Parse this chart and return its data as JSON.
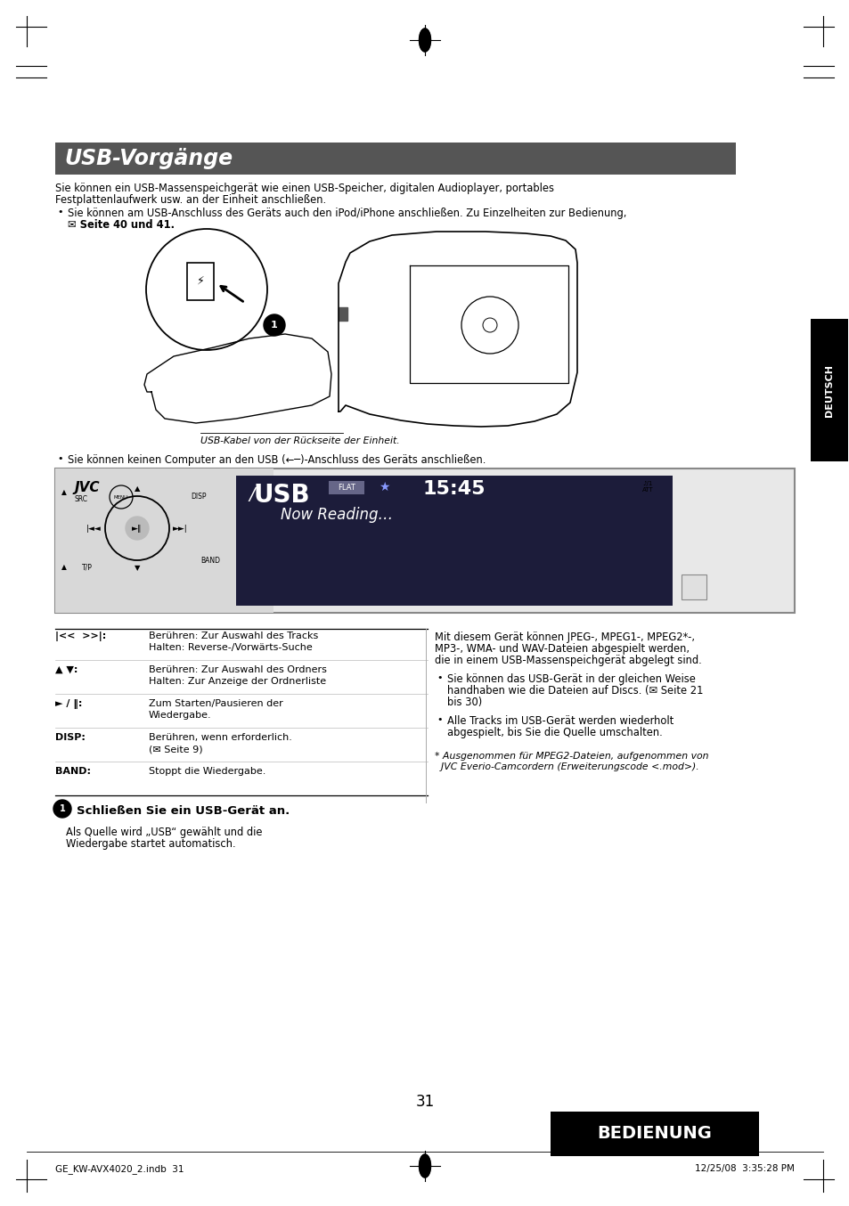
{
  "page_bg": "#ffffff",
  "title_bg": "#555555",
  "title_text": "USB-Vorgänge",
  "title_color": "#ffffff",
  "body_text_1a": "Sie können ein USB-Massenspeichgerät wie einen USB-Speicher, digitalen Audioplayer, portables",
  "body_text_1b": "Festplattenlaufwerk usw. an der Einheit anschließen.",
  "bullet1a": "Sie können am USB-Anschluss des Geräts auch den iPod/iPhone anschließen. Zu Einzelheiten zur Bedienung,",
  "bullet1b": "✉ Seite 40 und 41.",
  "caption_img": "USB-Kabel von der Rückseite der Einheit.",
  "bullet2": "Sie können keinen Computer an den USB (←─)-Anschluss des Geräts anschließen.",
  "table_r1_key": "|<<  >>|:",
  "table_r1_val1": "Berühren: Zur Auswahl des Tracks",
  "table_r1_val2": "Halten: Reverse-/Vorwärts-Suche",
  "table_r2_key": "▲ ▼:",
  "table_r2_val1": "Berühren: Zur Auswahl des Ordners",
  "table_r2_val2": "Halten: Zur Anzeige der Ordnerliste",
  "table_r3_key": "► / ‖:",
  "table_r3_val1": "Zum Starten/Pausieren der",
  "table_r3_val2": "Wiedergabe.",
  "table_r4_key": "DISP:",
  "table_r4_val1": "Berühren, wenn erforderlich.",
  "table_r4_val2": "(✉ Seite 9)",
  "table_r5_key": "BAND:",
  "table_r5_val1": "Stoppt die Wiedergabe.",
  "step1_title": "Schließen Sie ein USB-Gerät an.",
  "step1_body1": "Als Quelle wird „USB“ gewählt und die",
  "step1_body2": "Wiedergabe startet automatisch.",
  "right_col_1a": "Mit diesem Gerät können JPEG-, MPEG1-, MPEG2*-,",
  "right_col_1b": "MP3-, WMA- und WAV-Dateien abgespielt werden,",
  "right_col_1c": "die in einem USB-Massenspeichgerät abgelegt sind.",
  "right_b1_a": "Sie können das USB-Gerät in der gleichen Weise",
  "right_b1_b": "handhaben wie die Dateien auf Discs. (✉ Seite 21",
  "right_b1_c": "bis 30)",
  "right_b2_a": "Alle Tracks im USB-Gerät werden wiederholt",
  "right_b2_b": "abgespielt, bis Sie die Quelle umschalten.",
  "footnote_a": "* Ausgenommen für MPEG2-Dateien, aufgenommen von",
  "footnote_b": "  JVC Everio-Camcordern (Erweiterungscode <.mod>).",
  "page_number": "31",
  "footer_left": "GE_KW-AVX4020_2.indb  31",
  "footer_right": "12/25/08  3:35:28 PM",
  "bedienung_bg": "#000000",
  "bedienung_text": "BEDIENUNG",
  "deutsch_bg": "#000000",
  "deutsch_text": "DEUTSCH",
  "text_color": "#000000",
  "usb_label": "USB",
  "flat_label": "FLAT",
  "time_label": "15:45",
  "now_reading": "Now Reading…",
  "jvc_label": "JVC"
}
